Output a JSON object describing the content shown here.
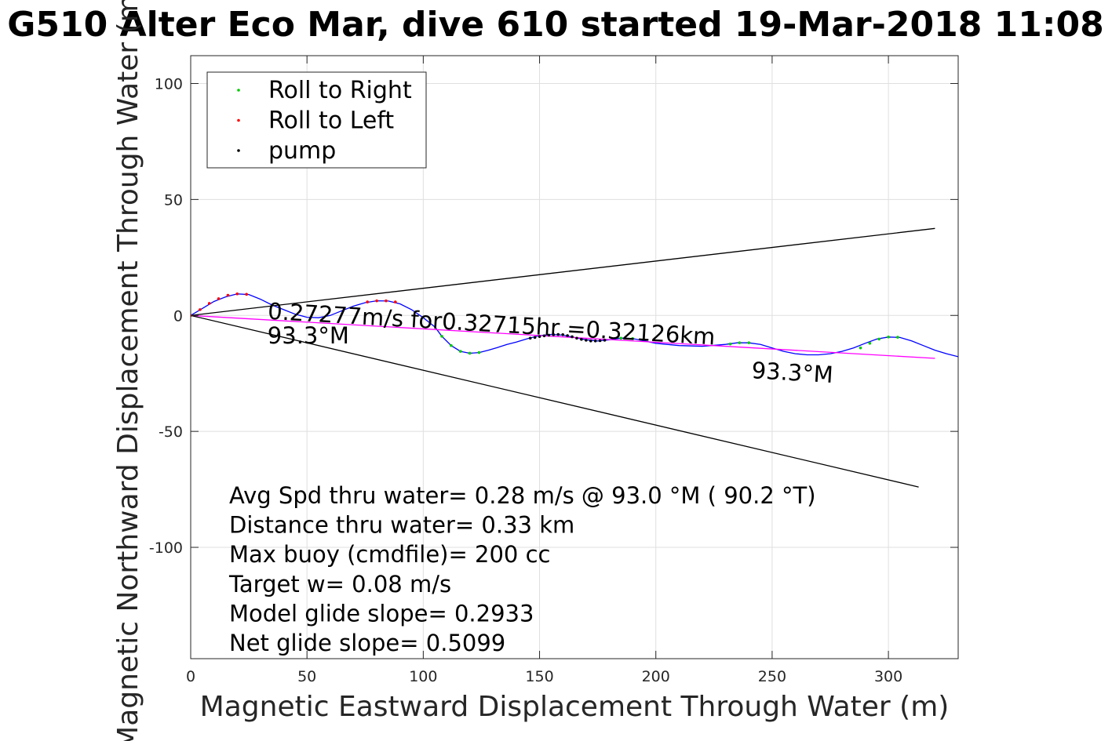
{
  "chart_data": {
    "type": "line",
    "title": "G510 Alter Eco Mar, dive 610 started 19-Mar-2018 11:08",
    "xlabel": "Magnetic Eastward Displacement Through Water (m)",
    "ylabel": "Magnetic Northward Displacement Through Water (m)",
    "xlim": [
      0,
      330
    ],
    "ylim": [
      -148,
      112
    ],
    "xticks": [
      0,
      50,
      100,
      150,
      200,
      250,
      300
    ],
    "yticks": [
      100,
      50,
      0,
      -50,
      -100
    ],
    "xtick_labels": [
      "0",
      "50",
      "100",
      "150",
      "200",
      "250",
      "300"
    ],
    "ytick_labels": [
      "100",
      "50",
      "0",
      "-50",
      "-100"
    ],
    "grid": true,
    "legend": {
      "placement": "top-left",
      "entries": [
        {
          "label": "Roll to Right",
          "color": "#00cc00"
        },
        {
          "label": "Roll to Left",
          "color": "#ff0000"
        },
        {
          "label": "pump",
          "color": "#000000"
        }
      ]
    },
    "series": [
      {
        "style": "line",
        "color": "#0000ff",
        "x": [
          0,
          5,
          10,
          15,
          20,
          25,
          30,
          35,
          40,
          45,
          50,
          55,
          60,
          65,
          70,
          75,
          80,
          85,
          90,
          95,
          100,
          105,
          108,
          112,
          116,
          120,
          124,
          128,
          132,
          136,
          140,
          145,
          150,
          155,
          160,
          165,
          170,
          175,
          180,
          185,
          190,
          195,
          200,
          210,
          220,
          230,
          235,
          240,
          245,
          250,
          255,
          260,
          265,
          270,
          275,
          280,
          285,
          290,
          295,
          300,
          305,
          310,
          315,
          320,
          325,
          330
        ],
        "y": [
          0,
          3,
          6,
          8,
          9.3,
          9,
          7,
          4.5,
          2.5,
          0.5,
          -0.8,
          -1,
          0,
          2,
          4,
          5.5,
          6.3,
          6.2,
          5,
          2.5,
          -1,
          -5,
          -9,
          -13,
          -15.5,
          -16.3,
          -16,
          -15,
          -13.8,
          -12.5,
          -11.5,
          -10,
          -8.7,
          -8.2,
          -8.5,
          -9.5,
          -10.5,
          -11,
          -10.5,
          -9.8,
          -10,
          -11,
          -12,
          -13,
          -13.3,
          -12.5,
          -11.8,
          -11.8,
          -12.5,
          -14,
          -15.5,
          -16.5,
          -17,
          -17,
          -16.5,
          -15.5,
          -14,
          -12,
          -10.2,
          -9.3,
          -9.5,
          -11,
          -13,
          -15,
          -16.5,
          -17.8
        ]
      },
      {
        "style": "line",
        "color": "#ff00ff",
        "x": [
          0,
          320
        ],
        "y": [
          0,
          -18.5
        ]
      },
      {
        "style": "line",
        "color": "#000000",
        "x": [
          0,
          320
        ],
        "y": [
          0,
          37.5
        ]
      },
      {
        "style": "line",
        "color": "#000000",
        "x": [
          0,
          313
        ],
        "y": [
          0,
          -74
        ]
      },
      {
        "style": "points",
        "color": "#00cc00",
        "x": [
          108,
          112,
          116,
          120,
          124,
          185,
          190,
          232,
          236,
          240,
          288,
          292,
          296,
          300,
          304
        ],
        "y": [
          -9,
          -13,
          -15.5,
          -16.3,
          -16,
          -9.8,
          -10,
          -12.3,
          -11.8,
          -11.8,
          -14,
          -12,
          -10.2,
          -9.3,
          -9.4
        ]
      },
      {
        "style": "points",
        "color": "#ff0000",
        "x": [
          0,
          4,
          8,
          12,
          16,
          20,
          24,
          76,
          80,
          84,
          88
        ],
        "y": [
          0,
          2.5,
          5.2,
          7.2,
          8.7,
          9.3,
          9.1,
          5.8,
          6.3,
          6.3,
          5.8
        ]
      },
      {
        "style": "points",
        "color": "#000000",
        "x": [
          146,
          148,
          150,
          152,
          154,
          156,
          158,
          160,
          162,
          164,
          166,
          168,
          170,
          172,
          174,
          176,
          178
        ],
        "y": [
          -9.8,
          -9.5,
          -9.1,
          -8.8,
          -8.5,
          -8.3,
          -8.2,
          -8.3,
          -8.7,
          -9.2,
          -9.8,
          -10.3,
          -10.7,
          -11,
          -11,
          -10.9,
          -10.7
        ]
      }
    ],
    "annotations": [
      {
        "text": "0.27277m/s for0.32715hr =0.32126km",
        "x": 33,
        "y": -1.5,
        "rotate": 3.3
      },
      {
        "text": "93.3°M",
        "x": 33,
        "y": -12
      },
      {
        "text": "93.3°M",
        "x": 241,
        "y": -27,
        "rotate": 3.3
      }
    ],
    "stats": [
      "Avg Spd thru water=  0.28 m/s @  93.0 °M ( 90.2 °T)",
      "Distance thru water=  0.33 km",
      "Max buoy (cmdfile)= 200 cc",
      "Target w= 0.08 m/s",
      "Model glide slope= 0.2933",
      "Net glide slope= 0.5099"
    ]
  }
}
